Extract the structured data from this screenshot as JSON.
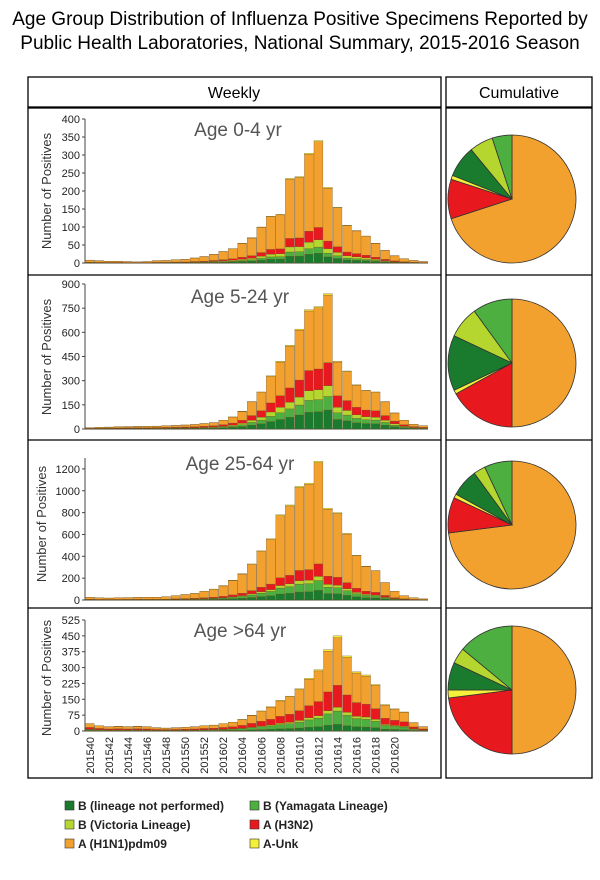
{
  "title_line1": "Age Group Distribution of Influenza Positive Specimens Reported by",
  "title_line2": "Public Health Laboratories, National Summary, 2015-2016 Season",
  "weekly_header": "Weekly",
  "cumulative_header": "Cumulative",
  "ylabel": "Number of Positives",
  "x_ticks": [
    "201540",
    "201542",
    "201544",
    "201546",
    "201548",
    "201550",
    "201552",
    "201602",
    "201604",
    "201606",
    "201608",
    "201610",
    "201612",
    "201614",
    "201616",
    "201618",
    "201620"
  ],
  "colors": {
    "b_lineage_not_performed": "#1a7a2e",
    "b_yamagata": "#4caf3f",
    "b_victoria": "#b5d62e",
    "a_h3n2": "#e8191e",
    "a_h1n1pdm09": "#f2a12e",
    "a_unk": "#f5f03a"
  },
  "legend": [
    {
      "key": "b_lineage_not_performed",
      "label": "B (lineage not performed)"
    },
    {
      "key": "b_yamagata",
      "label": "B (Yamagata Lineage)"
    },
    {
      "key": "b_victoria",
      "label": "B (Victoria Lineage)"
    },
    {
      "key": "a_h3n2",
      "label": "A (H3N2)"
    },
    {
      "key": "a_h1n1pdm09",
      "label": "A (H1N1)pdm09"
    },
    {
      "key": "a_unk",
      "label": "A-Unk"
    }
  ],
  "chart_data": [
    {
      "type": "bar",
      "title": "Age 0-4 yr",
      "ylim": [
        0,
        400
      ],
      "yticks": [
        0,
        50,
        100,
        150,
        200,
        250,
        300,
        350,
        400
      ],
      "totals": [
        8,
        6,
        5,
        5,
        4,
        3,
        4,
        6,
        7,
        9,
        10,
        14,
        18,
        24,
        32,
        40,
        55,
        70,
        100,
        130,
        135,
        235,
        240,
        305,
        340,
        210,
        155,
        105,
        90,
        75,
        55,
        35,
        20,
        12,
        7,
        4
      ],
      "pie": {
        "b_lineage_not_performed": 8,
        "b_yamagata": 5,
        "b_victoria": 6,
        "a_h3n2": 10,
        "a_h1n1pdm09": 70,
        "a_unk": 1
      }
    },
    {
      "type": "bar",
      "title": "Age 5-24 yr",
      "ylim": [
        0,
        900
      ],
      "yticks": [
        0,
        150,
        300,
        450,
        600,
        750,
        900
      ],
      "totals": [
        8,
        10,
        12,
        14,
        15,
        16,
        16,
        18,
        20,
        22,
        25,
        28,
        34,
        40,
        55,
        75,
        110,
        170,
        230,
        330,
        420,
        520,
        620,
        740,
        760,
        840,
        420,
        360,
        275,
        240,
        230,
        170,
        100,
        55,
        30,
        20
      ],
      "pie": {
        "b_lineage_not_performed": 14,
        "b_yamagata": 10,
        "b_victoria": 8,
        "a_h3n2": 17,
        "a_h1n1pdm09": 50,
        "a_unk": 1
      }
    },
    {
      "type": "bar",
      "title": "Age 25-64 yr",
      "ylim": [
        0,
        1300
      ],
      "yticks": [
        0,
        200,
        400,
        600,
        800,
        1000,
        1200
      ],
      "totals": [
        25,
        20,
        18,
        20,
        22,
        24,
        25,
        26,
        30,
        40,
        50,
        60,
        80,
        100,
        130,
        180,
        240,
        330,
        450,
        560,
        780,
        870,
        1040,
        1070,
        1270,
        840,
        800,
        610,
        410,
        310,
        270,
        160,
        80,
        40,
        20,
        10
      ],
      "pie": {
        "b_lineage_not_performed": 7,
        "b_yamagata": 7,
        "b_victoria": 3,
        "a_h3n2": 9,
        "a_h1n1pdm09": 73,
        "a_unk": 1
      }
    },
    {
      "type": "bar",
      "title": "Age >64 yr",
      "ylim": [
        0,
        525
      ],
      "yticks": [
        0,
        75,
        150,
        225,
        300,
        375,
        450,
        525
      ],
      "totals": [
        35,
        25,
        20,
        22,
        20,
        22,
        20,
        15,
        14,
        15,
        18,
        20,
        25,
        28,
        35,
        42,
        55,
        75,
        95,
        115,
        145,
        165,
        200,
        250,
        290,
        385,
        450,
        355,
        280,
        265,
        220,
        125,
        105,
        90,
        40,
        20
      ],
      "pie": {
        "b_lineage_not_performed": 7,
        "b_yamagata": 14,
        "b_victoria": 4,
        "a_h3n2": 23,
        "a_h1n1pdm09": 50,
        "a_unk": 2
      }
    }
  ]
}
